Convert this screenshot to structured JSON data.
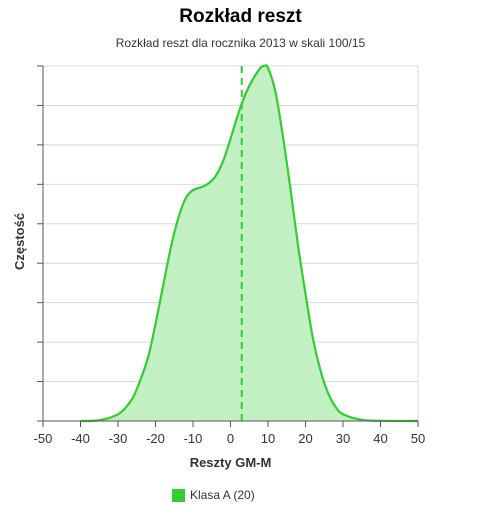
{
  "chart_data": {
    "type": "area",
    "title": "Rozkład reszt",
    "subtitle": "Rozkład reszt dla rocznika 2013 w skali 100/15",
    "xlabel": "Reszty GM-M",
    "ylabel": "Częstość",
    "xlim": [
      -50,
      50
    ],
    "ylim": [
      0,
      0.095
    ],
    "x_ticks": [
      -50,
      -40,
      -30,
      -20,
      -10,
      0,
      10,
      20,
      30,
      40,
      50
    ],
    "grid": true,
    "reference_line": {
      "x": 3,
      "style": "dashed"
    },
    "series": [
      {
        "name": "Klasa A (20)",
        "color": "#33cc33",
        "fill": "#c2f0c2",
        "x": [
          -40,
          -35,
          -30,
          -27,
          -25,
          -22,
          -20,
          -18,
          -16,
          -14,
          -12,
          -10,
          -8,
          -6,
          -4,
          -2,
          0,
          2,
          4,
          6,
          8,
          9,
          10,
          12,
          14,
          16,
          18,
          20,
          22,
          24,
          26,
          28,
          30,
          35,
          40,
          50
        ],
        "values": [
          0,
          0.0002,
          0.0018,
          0.0048,
          0.0085,
          0.017,
          0.026,
          0.036,
          0.046,
          0.054,
          0.0595,
          0.0618,
          0.0625,
          0.0635,
          0.0655,
          0.0695,
          0.0755,
          0.082,
          0.0875,
          0.0915,
          0.0945,
          0.095,
          0.0945,
          0.088,
          0.076,
          0.062,
          0.047,
          0.034,
          0.022,
          0.0135,
          0.0075,
          0.0038,
          0.0018,
          0.0003,
          5e-05,
          0
        ]
      }
    ]
  },
  "legend": {
    "label": "Klasa A (20)",
    "color": "#33cc33"
  }
}
